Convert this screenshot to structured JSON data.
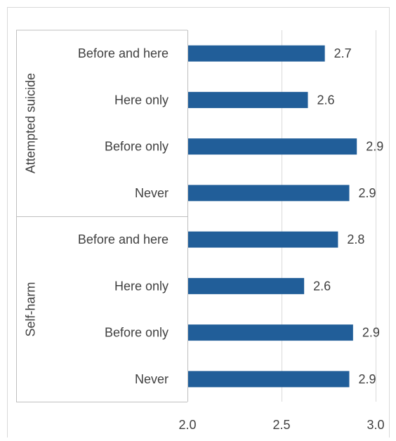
{
  "chart_data": {
    "type": "bar",
    "orientation": "horizontal",
    "xlim": [
      2.0,
      3.0
    ],
    "x_ticks": [
      "2.0",
      "2.5",
      "3.0"
    ],
    "grid": true,
    "bar_color": "#215E99",
    "groups": [
      {
        "name": "Attempted suicide",
        "categories": [
          "Before and here",
          "Here only",
          "Before only",
          "Never"
        ],
        "values": [
          2.73,
          2.64,
          2.9,
          2.86
        ],
        "labels": [
          "2.7",
          "2.6",
          "2.9",
          "2.9"
        ]
      },
      {
        "name": "Self-harm",
        "categories": [
          "Before and here",
          "Here only",
          "Before only",
          "Never"
        ],
        "values": [
          2.8,
          2.62,
          2.88,
          2.86
        ],
        "labels": [
          "2.8",
          "2.6",
          "2.9",
          "2.9"
        ]
      }
    ]
  }
}
